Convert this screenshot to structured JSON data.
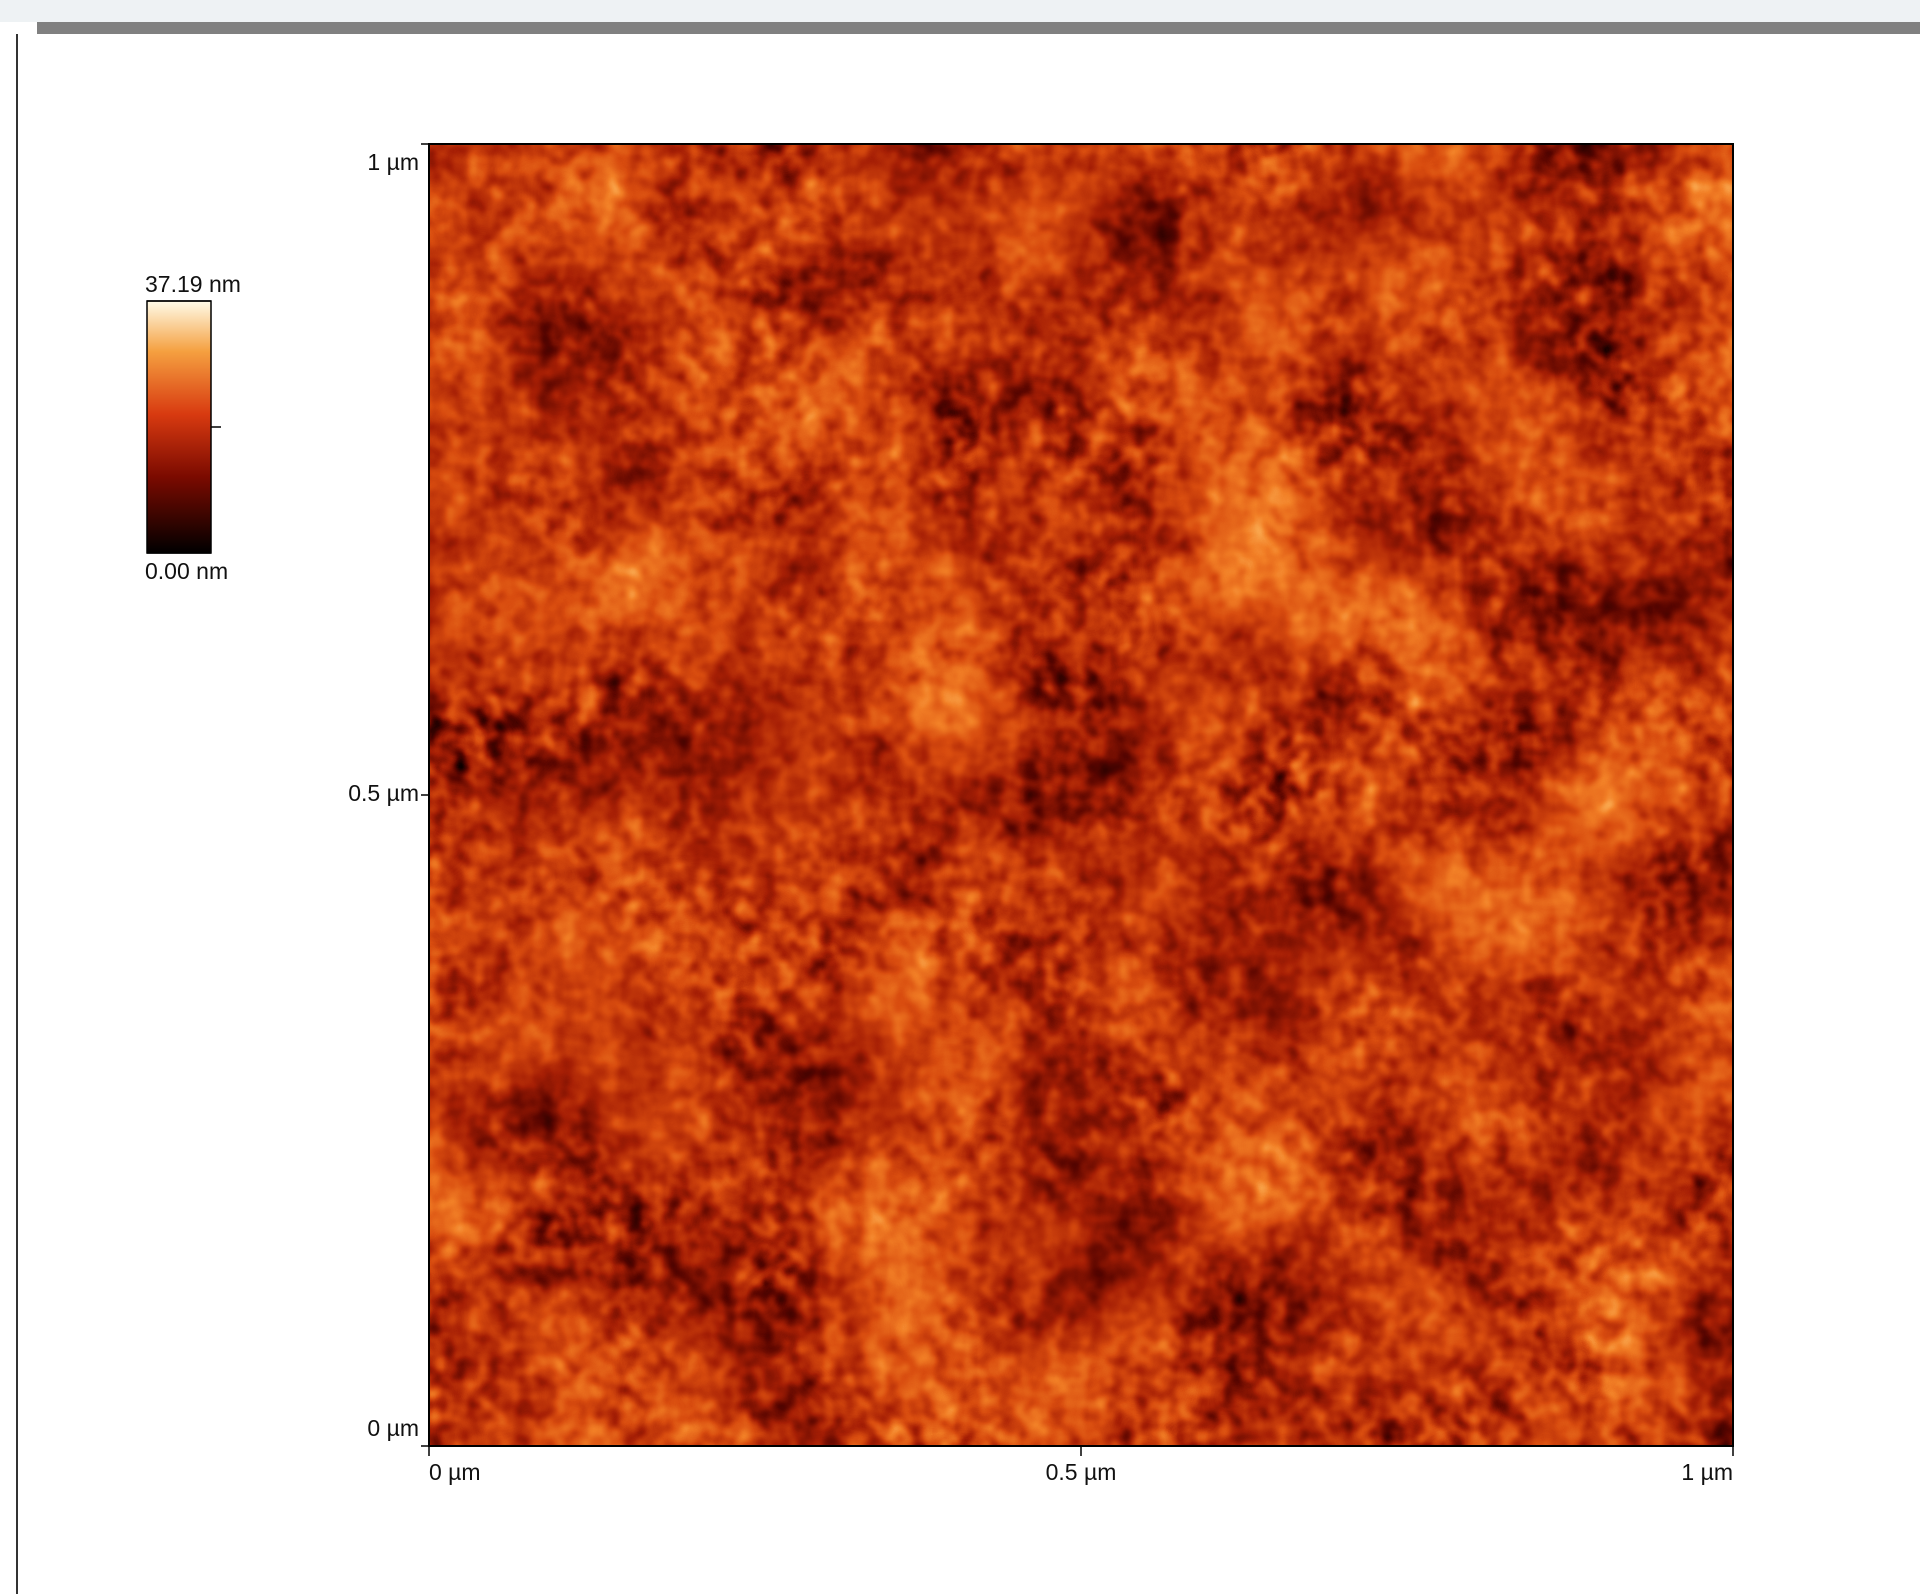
{
  "chart_data": {
    "type": "image",
    "xlim": [
      0,
      1
    ],
    "ylim": [
      0,
      1
    ],
    "xticks": [
      {
        "value": 0,
        "label": "0 µm"
      },
      {
        "value": 0.5,
        "label": "0.5 µm"
      },
      {
        "value": 1,
        "label": "1 µm"
      }
    ],
    "yticks": [
      {
        "value": 0,
        "label": "0 µm"
      },
      {
        "value": 0.5,
        "label": "0.5 µm"
      },
      {
        "value": 1,
        "label": "1 µm"
      }
    ],
    "colorbar": {
      "lim": [
        0,
        37.19
      ],
      "ticks": [
        {
          "value": 0,
          "label": "0.00 nm"
        },
        {
          "value": 37.19,
          "label": "37.19 nm"
        }
      ]
    }
  }
}
